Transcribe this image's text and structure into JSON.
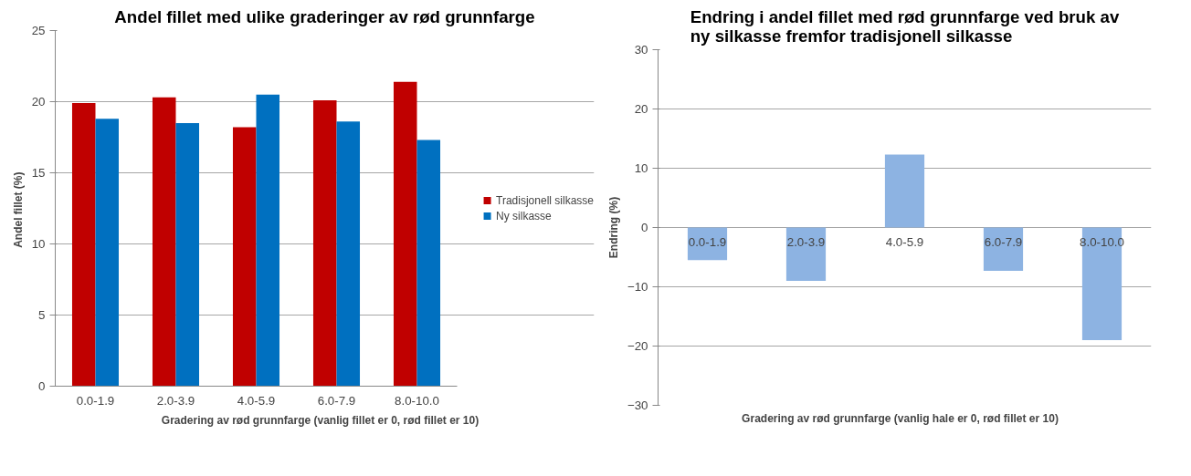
{
  "chart_data": [
    {
      "type": "bar",
      "title": "Andel fillet med ulike graderinger av rød grunnfarge",
      "xlabel": "Gradering av rød grunnfarge  (vanlig  fillet  er 0, rød fillet er 10)",
      "ylabel": "Andel fillet  (%)",
      "categories": [
        "0.0-1.9",
        "2.0-3.9",
        "4.0-5.9",
        "6.0-7.9",
        "8.0-10.0"
      ],
      "series": [
        {
          "name": "Tradisjonell silkasse",
          "color": "#c00000",
          "values": [
            19.9,
            20.3,
            18.2,
            20.1,
            21.4
          ]
        },
        {
          "name": "Ny silkasse",
          "color": "#0070c0",
          "values": [
            18.8,
            18.5,
            20.5,
            18.6,
            17.3
          ]
        }
      ],
      "ylim": [
        0,
        25
      ],
      "yticks": [
        0,
        5,
        10,
        15,
        20,
        25
      ],
      "grid": "y",
      "legend": "right"
    },
    {
      "type": "bar",
      "title": "Endring i andel fillet med rød grunnfarge ved bruk av ny silkasse fremfor tradisjonell silkasse",
      "xlabel": "Gradering av rød grunnfarge  (vanlig  hale  er 0, rød fillet er 10)",
      "ylabel": "Endring (%)",
      "categories": [
        "0.0-1.9",
        "2.0-3.9",
        "4.0-5.9",
        "6.0-7.9",
        "8.0-10.0"
      ],
      "series": [
        {
          "color": "#8db3e2",
          "values": [
            -5.5,
            -9.0,
            12.3,
            -7.3,
            -19.0
          ]
        }
      ],
      "ylim": [
        -30,
        30
      ],
      "yticks": [
        -30,
        -20,
        -10,
        0,
        10,
        20,
        30
      ],
      "grid": "y",
      "legend": false
    }
  ]
}
